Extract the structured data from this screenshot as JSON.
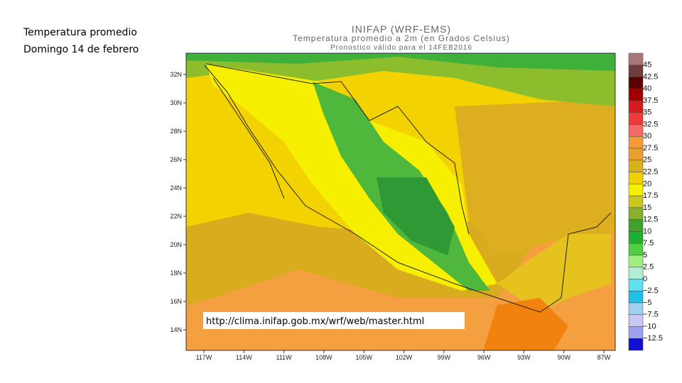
{
  "slide": {
    "title_lines": [
      "Temperatura promedio",
      "Domingo 14 de febrero"
    ]
  },
  "map": {
    "header": [
      "INIFAP (WRF-EMS)",
      "Temperatura promedio a 2m (en Grados Celsius)",
      "Pronostico válido para el 14FEB2016"
    ],
    "lat_labels": [
      "32N",
      "30N",
      "28N",
      "26N",
      "24N",
      "22N",
      "20N",
      "18N",
      "16N",
      "14N"
    ],
    "lon_labels": [
      "117W",
      "114W",
      "111W",
      "108W",
      "105W",
      "102W",
      "99W",
      "96W",
      "93W",
      "90W",
      "87W"
    ],
    "source_url": "http://clima.inifap.gob.mx/wrf/web/master.html"
  },
  "colorbar": {
    "labels": [
      "45",
      "42.5",
      "40",
      "37.5",
      "35",
      "32.5",
      "30",
      "27.5",
      "25",
      "22.5",
      "20",
      "17.5",
      "15",
      "12.5",
      "10",
      "7.5",
      "5",
      "2.5",
      "0",
      "−2.5",
      "−5",
      "−7.5",
      "−10",
      "−12.5"
    ]
  }
}
